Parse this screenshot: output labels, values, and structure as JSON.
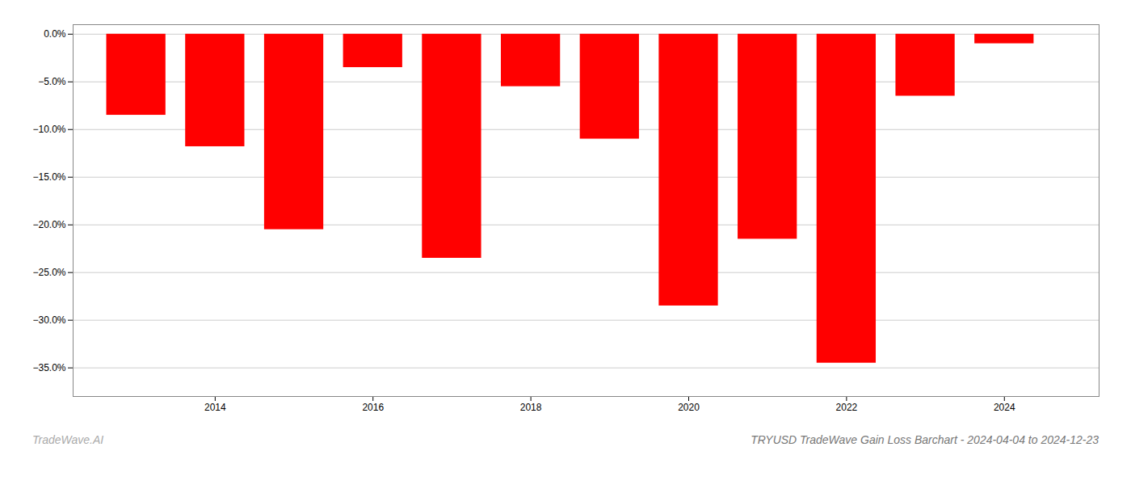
{
  "chart_data": {
    "type": "bar",
    "title": "TRYUSD TradeWave Gain Loss Barchart - 2024-04-04 to 2024-12-23",
    "annotations": [
      "TradeWave.AI"
    ],
    "x": [
      2013,
      2014,
      2015,
      2016,
      2017,
      2018,
      2019,
      2020,
      2021,
      2022,
      2023,
      2024
    ],
    "values": [
      -0.085,
      -0.118,
      -0.205,
      -0.035,
      -0.235,
      -0.055,
      -0.11,
      -0.285,
      -0.215,
      -0.345,
      -0.065,
      -0.01
    ],
    "color": "#ff0000",
    "xlim": [
      2012.2,
      2025.2
    ],
    "xticks": [
      2014,
      2016,
      2018,
      2020,
      2022,
      2024
    ],
    "ylim": [
      -0.38,
      0.01
    ],
    "yticks": [
      {
        "value": 0.0,
        "label": "0.0%"
      },
      {
        "value": -0.05,
        "label": "−5.0%"
      },
      {
        "value": -0.1,
        "label": "−10.0%"
      },
      {
        "value": -0.15,
        "label": "−15.0%"
      },
      {
        "value": -0.2,
        "label": "−20.0%"
      },
      {
        "value": -0.25,
        "label": "−25.0%"
      },
      {
        "value": -0.3,
        "label": "−30.0%"
      },
      {
        "value": -0.35,
        "label": "−35.0%"
      }
    ],
    "grid": true
  }
}
